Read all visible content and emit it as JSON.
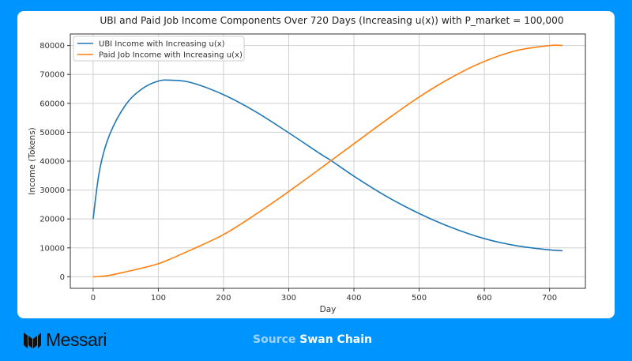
{
  "chart_data": {
    "type": "line",
    "title": "UBI and Paid Job Income Components Over 720 Days (Increasing u(x)) with P_market = 100,000",
    "xlabel": "Day",
    "ylabel": "Income (Tokens)",
    "xlim": [
      -35,
      755
    ],
    "ylim": [
      -4000,
      84000
    ],
    "x_ticks": [
      0,
      100,
      200,
      300,
      400,
      500,
      600,
      700
    ],
    "y_ticks": [
      0,
      10000,
      20000,
      30000,
      40000,
      50000,
      60000,
      70000,
      80000
    ],
    "grid": true,
    "legend_position": "upper left",
    "x": [
      0,
      10,
      25,
      50,
      75,
      100,
      120,
      150,
      200,
      250,
      300,
      350,
      365,
      400,
      450,
      500,
      550,
      600,
      650,
      700,
      720
    ],
    "series": [
      {
        "name": "UBI Income with Increasing u(x)",
        "color": "#1f77b4",
        "values": [
          20000,
          37000,
          49000,
          59500,
          65000,
          67700,
          68000,
          67200,
          63000,
          57000,
          49800,
          42300,
          40200,
          34800,
          27800,
          21900,
          17000,
          13200,
          10700,
          9300,
          9000
        ]
      },
      {
        "name": "Paid Job Income with Increasing u(x)",
        "color": "#ff7f0e",
        "values": [
          0,
          100,
          500,
          1700,
          3000,
          4500,
          6300,
          9300,
          14600,
          21700,
          29500,
          37700,
          40200,
          46000,
          54300,
          62200,
          69000,
          74500,
          78300,
          80000,
          80000
        ]
      }
    ]
  },
  "footer": {
    "brand": "Messari",
    "source_label": "Source",
    "source_value": "Swan Chain"
  }
}
